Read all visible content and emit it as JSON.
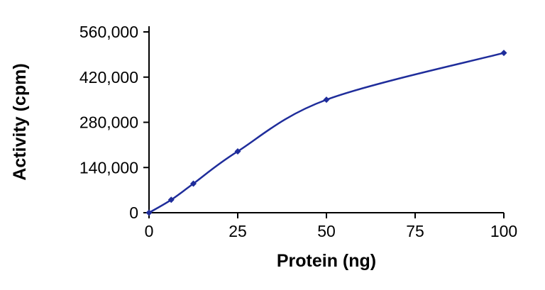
{
  "chart_data": {
    "type": "line",
    "series": [
      {
        "name": "Activity",
        "x": [
          0,
          6.25,
          12.5,
          25,
          50,
          100
        ],
        "y": [
          0,
          40000,
          90000,
          190000,
          350000,
          495000
        ]
      }
    ],
    "title": "",
    "xlabel": "Protein (ng)",
    "ylabel": "Activity (cpm)",
    "xlim": [
      0,
      100
    ],
    "ylim": [
      0,
      560000
    ],
    "x_ticks": [
      0,
      25,
      50,
      75,
      100
    ],
    "y_ticks": [
      0,
      140000,
      280000,
      420000,
      560000
    ],
    "grid": false,
    "legend": false,
    "line_color": "#1f2d9b",
    "axis_color": "#000000",
    "marker": "diamond",
    "background": "#ffffff"
  }
}
